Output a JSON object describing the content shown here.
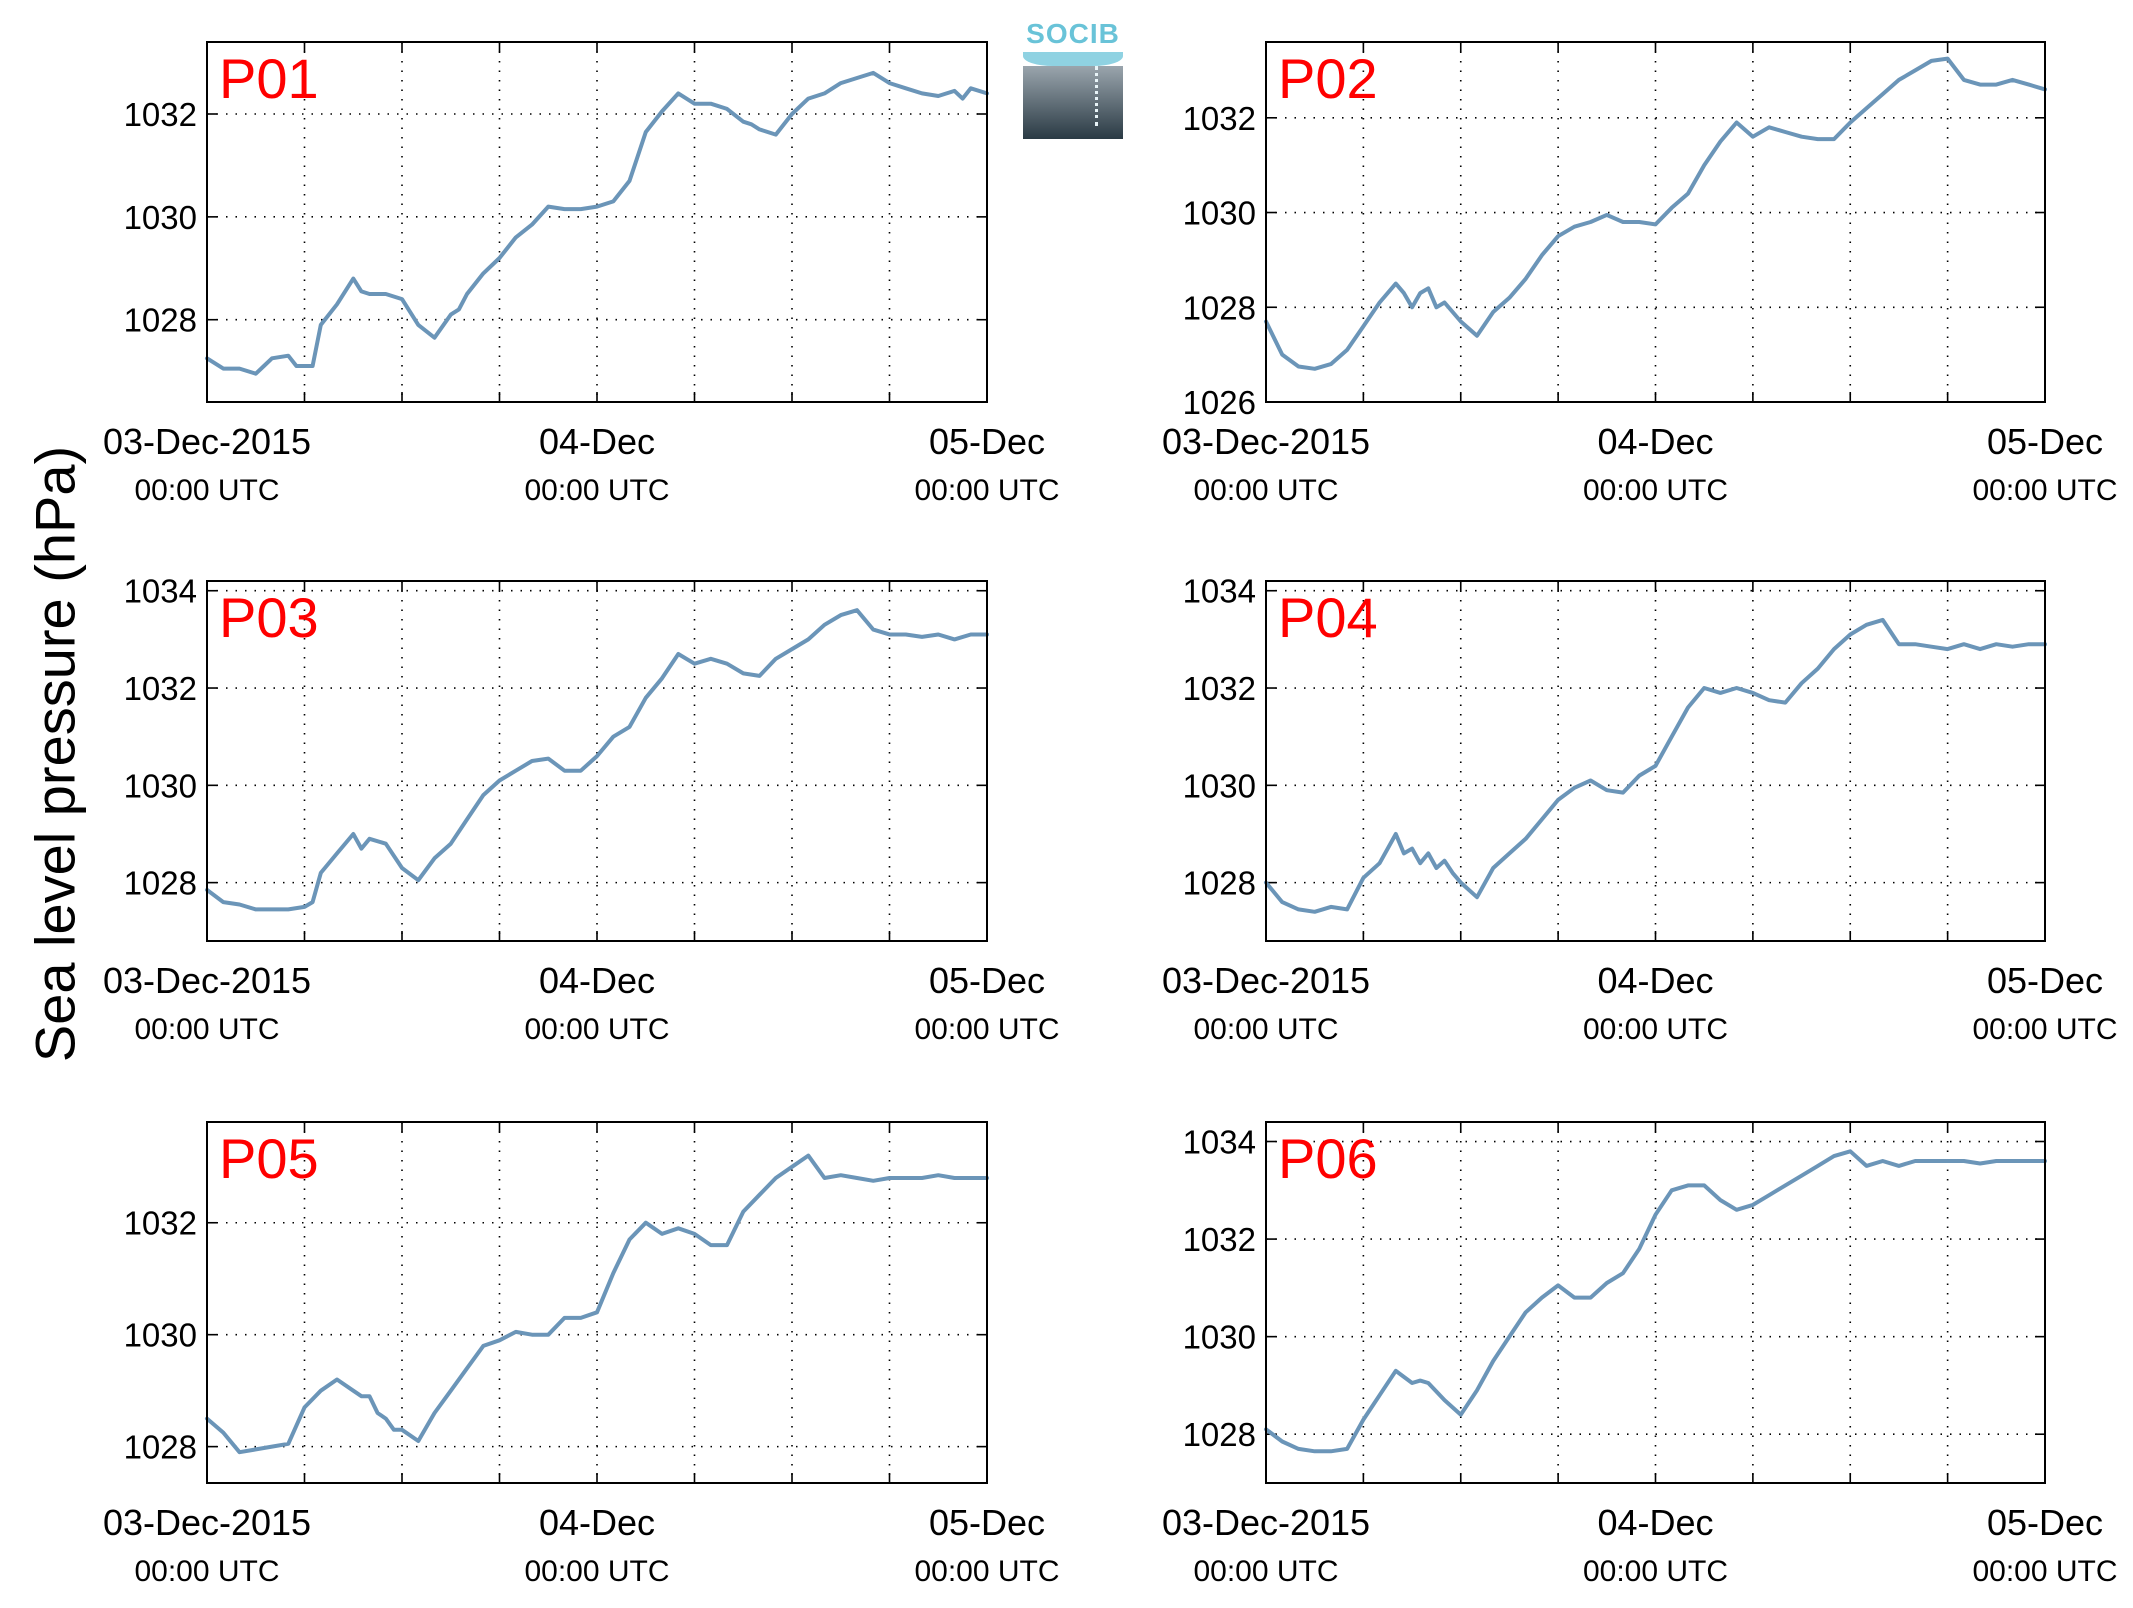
{
  "figure": {
    "ylabel": "Sea level pressure (hPa)",
    "logo_text": "SOCIB",
    "line_color": "#6b95b8",
    "label_color": "#ff0000"
  },
  "x_tick_labels": [
    {
      "top": "03-Dec-2015",
      "bottom": "00:00 UTC"
    },
    {
      "top": "04-Dec",
      "bottom": "00:00 UTC"
    },
    {
      "top": "05-Dec",
      "bottom": "00:00 UTC"
    }
  ],
  "chart_data": [
    {
      "type": "line",
      "label": "P01",
      "x_unit": "hours since 03-Dec-2015 00:00 UTC",
      "xlim": [
        0,
        48
      ],
      "ylim": [
        1026.4,
        1033.4
      ],
      "yticks": [
        1028,
        1030,
        1032
      ],
      "grid": true,
      "x": [
        0,
        1,
        2,
        3,
        3.5,
        4,
        5,
        5.5,
        6,
        6.5,
        7,
        8,
        9,
        9.5,
        10,
        10.5,
        11,
        12,
        13,
        14,
        15,
        15.5,
        16,
        17,
        18,
        19,
        20,
        21,
        22,
        23,
        24,
        25,
        26,
        27,
        28,
        29,
        30,
        31,
        32,
        33,
        33.5,
        34,
        35,
        36,
        37,
        38,
        39,
        40,
        41,
        42,
        43,
        44,
        45,
        46,
        46.5,
        47,
        48
      ],
      "y": [
        1027.25,
        1027.05,
        1027.05,
        1026.95,
        1027.1,
        1027.25,
        1027.3,
        1027.1,
        1027.1,
        1027.1,
        1027.9,
        1028.3,
        1028.8,
        1028.55,
        1028.5,
        1028.5,
        1028.5,
        1028.4,
        1027.9,
        1027.65,
        1028.1,
        1028.2,
        1028.5,
        1028.9,
        1029.2,
        1029.6,
        1029.85,
        1030.2,
        1030.15,
        1030.15,
        1030.2,
        1030.3,
        1030.7,
        1031.65,
        1032.05,
        1032.4,
        1032.2,
        1032.2,
        1032.1,
        1031.85,
        1031.8,
        1031.7,
        1031.6,
        1032.0,
        1032.3,
        1032.4,
        1032.6,
        1032.7,
        1032.8,
        1032.6,
        1032.5,
        1032.4,
        1032.35,
        1032.45,
        1032.3,
        1032.5,
        1032.4
      ]
    },
    {
      "type": "line",
      "label": "P02",
      "x_unit": "hours since 03-Dec-2015 00:00 UTC",
      "xlim": [
        0,
        48
      ],
      "ylim": [
        1026.0,
        1033.6
      ],
      "yticks": [
        1026,
        1028,
        1030,
        1032
      ],
      "grid": true,
      "x": [
        0,
        1,
        2,
        3,
        4,
        5,
        6,
        7,
        8,
        8.5,
        9,
        9.5,
        10,
        10.5,
        11,
        12,
        13,
        14,
        15,
        16,
        17,
        18,
        19,
        20,
        21,
        22,
        23,
        24,
        25,
        26,
        27,
        28,
        29,
        30,
        31,
        32,
        33,
        34,
        35,
        36,
        37,
        38,
        39,
        40,
        41,
        42,
        43,
        44,
        45,
        46,
        47,
        48
      ],
      "y": [
        1027.7,
        1027.0,
        1026.75,
        1026.7,
        1026.8,
        1027.1,
        1027.6,
        1028.1,
        1028.5,
        1028.3,
        1028.0,
        1028.3,
        1028.4,
        1028.0,
        1028.1,
        1027.7,
        1027.4,
        1027.9,
        1028.2,
        1028.6,
        1029.1,
        1029.5,
        1029.7,
        1029.8,
        1029.95,
        1029.8,
        1029.8,
        1029.75,
        1030.1,
        1030.4,
        1031.0,
        1031.5,
        1031.9,
        1031.6,
        1031.8,
        1031.7,
        1031.6,
        1031.55,
        1031.55,
        1031.9,
        1032.2,
        1032.5,
        1032.8,
        1033.0,
        1033.2,
        1033.25,
        1032.8,
        1032.7,
        1032.7,
        1032.8,
        1032.7,
        1032.6
      ]
    },
    {
      "type": "line",
      "label": "P03",
      "x_unit": "hours since 03-Dec-2015 00:00 UTC",
      "xlim": [
        0,
        48
      ],
      "ylim": [
        1026.8,
        1034.2
      ],
      "yticks": [
        1028,
        1030,
        1032,
        1034
      ],
      "grid": true,
      "x": [
        0,
        1,
        2,
        3,
        4,
        5,
        6,
        6.5,
        7,
        8,
        9,
        9.5,
        10,
        11,
        12,
        13,
        14,
        15,
        16,
        17,
        18,
        19,
        20,
        21,
        22,
        23,
        24,
        25,
        26,
        27,
        28,
        29,
        30,
        31,
        32,
        33,
        34,
        35,
        36,
        37,
        38,
        39,
        40,
        41,
        42,
        43,
        44,
        45,
        46,
        47,
        48
      ],
      "y": [
        1027.85,
        1027.6,
        1027.55,
        1027.45,
        1027.45,
        1027.45,
        1027.5,
        1027.6,
        1028.2,
        1028.6,
        1029.0,
        1028.7,
        1028.9,
        1028.8,
        1028.3,
        1028.05,
        1028.5,
        1028.8,
        1029.3,
        1029.8,
        1030.1,
        1030.3,
        1030.5,
        1030.55,
        1030.3,
        1030.3,
        1030.6,
        1031.0,
        1031.2,
        1031.8,
        1032.2,
        1032.7,
        1032.5,
        1032.6,
        1032.5,
        1032.3,
        1032.25,
        1032.6,
        1032.8,
        1033.0,
        1033.3,
        1033.5,
        1033.6,
        1033.2,
        1033.1,
        1033.1,
        1033.05,
        1033.1,
        1033.0,
        1033.1,
        1033.1
      ]
    },
    {
      "type": "line",
      "label": "P04",
      "x_unit": "hours since 03-Dec-2015 00:00 UTC",
      "xlim": [
        0,
        48
      ],
      "ylim": [
        1026.8,
        1034.2
      ],
      "yticks": [
        1028,
        1030,
        1032,
        1034
      ],
      "grid": true,
      "x": [
        0,
        1,
        2,
        3,
        4,
        5,
        6,
        7,
        8,
        8.5,
        9,
        9.5,
        10,
        10.5,
        11,
        11.5,
        12,
        13,
        14,
        15,
        16,
        17,
        18,
        19,
        20,
        21,
        22,
        23,
        24,
        25,
        26,
        27,
        28,
        29,
        30,
        31,
        32,
        33,
        34,
        35,
        36,
        37,
        38,
        39,
        40,
        41,
        42,
        43,
        44,
        45,
        46,
        47,
        48
      ],
      "y": [
        1028.0,
        1027.6,
        1027.45,
        1027.4,
        1027.5,
        1027.45,
        1028.1,
        1028.4,
        1029.0,
        1028.6,
        1028.7,
        1028.4,
        1028.6,
        1028.3,
        1028.45,
        1028.2,
        1028.0,
        1027.7,
        1028.3,
        1028.6,
        1028.9,
        1029.3,
        1029.7,
        1029.95,
        1030.1,
        1029.9,
        1029.85,
        1030.2,
        1030.4,
        1031.0,
        1031.6,
        1032.0,
        1031.9,
        1032.0,
        1031.9,
        1031.75,
        1031.7,
        1032.1,
        1032.4,
        1032.8,
        1033.1,
        1033.3,
        1033.4,
        1032.9,
        1032.9,
        1032.85,
        1032.8,
        1032.9,
        1032.8,
        1032.9,
        1032.85,
        1032.9,
        1032.9
      ]
    },
    {
      "type": "line",
      "label": "P05",
      "x_unit": "hours since 03-Dec-2015 00:00 UTC",
      "xlim": [
        0,
        48
      ],
      "ylim": [
        1027.35,
        1033.8
      ],
      "yticks": [
        1028,
        1030,
        1032
      ],
      "grid": true,
      "x": [
        0,
        1,
        2,
        3,
        4,
        5,
        6,
        7,
        8,
        9,
        9.5,
        10,
        10.5,
        11,
        11.5,
        12,
        13,
        14,
        15,
        16,
        17,
        18,
        19,
        20,
        21,
        22,
        23,
        24,
        25,
        26,
        27,
        28,
        29,
        30,
        31,
        32,
        33,
        34,
        35,
        36,
        37,
        38,
        39,
        40,
        41,
        42,
        43,
        44,
        45,
        46,
        47,
        48
      ],
      "y": [
        1028.5,
        1028.25,
        1027.9,
        1027.95,
        1028.0,
        1028.05,
        1028.7,
        1029.0,
        1029.2,
        1029.0,
        1028.9,
        1028.9,
        1028.6,
        1028.5,
        1028.3,
        1028.3,
        1028.1,
        1028.6,
        1029.0,
        1029.4,
        1029.8,
        1029.9,
        1030.05,
        1030.0,
        1030.0,
        1030.3,
        1030.3,
        1030.4,
        1031.1,
        1031.7,
        1032.0,
        1031.8,
        1031.9,
        1031.8,
        1031.6,
        1031.6,
        1032.2,
        1032.5,
        1032.8,
        1033.0,
        1033.2,
        1032.8,
        1032.85,
        1032.8,
        1032.75,
        1032.8,
        1032.8,
        1032.8,
        1032.85,
        1032.8,
        1032.8,
        1032.8
      ]
    },
    {
      "type": "line",
      "label": "P06",
      "x_unit": "hours since 03-Dec-2015 00:00 UTC",
      "xlim": [
        0,
        48
      ],
      "ylim": [
        1027.0,
        1034.4
      ],
      "yticks": [
        1028,
        1030,
        1032,
        1034
      ],
      "grid": true,
      "x": [
        0,
        1,
        2,
        3,
        4,
        5,
        6,
        7,
        8,
        9,
        9.5,
        10,
        11,
        12,
        13,
        14,
        15,
        16,
        17,
        18,
        19,
        20,
        21,
        22,
        23,
        24,
        25,
        26,
        27,
        28,
        29,
        30,
        31,
        32,
        33,
        34,
        35,
        36,
        37,
        38,
        39,
        40,
        41,
        42,
        43,
        44,
        45,
        46,
        47,
        48
      ],
      "y": [
        1028.1,
        1027.85,
        1027.7,
        1027.65,
        1027.65,
        1027.7,
        1028.3,
        1028.8,
        1029.3,
        1029.05,
        1029.1,
        1029.05,
        1028.7,
        1028.4,
        1028.9,
        1029.5,
        1030.0,
        1030.5,
        1030.8,
        1031.05,
        1030.8,
        1030.8,
        1031.1,
        1031.3,
        1031.8,
        1032.5,
        1033.0,
        1033.1,
        1033.1,
        1032.8,
        1032.6,
        1032.7,
        1032.9,
        1033.1,
        1033.3,
        1033.5,
        1033.7,
        1033.8,
        1033.5,
        1033.6,
        1033.5,
        1033.6,
        1033.6,
        1033.6,
        1033.6,
        1033.55,
        1033.6,
        1033.6,
        1033.6,
        1033.6
      ]
    }
  ]
}
